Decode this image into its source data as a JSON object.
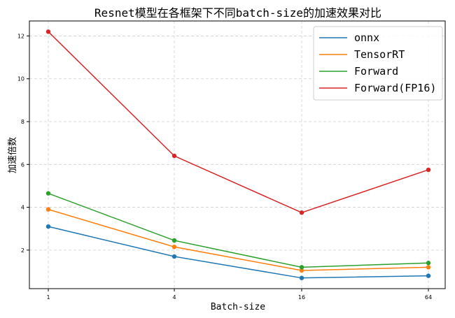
{
  "chart_data": {
    "type": "line",
    "title": "Resnet模型在各框架下不同batch-size的加速效果对比",
    "xlabel": "Batch-size",
    "ylabel": "加速倍数",
    "categories": [
      "1",
      "4",
      "16",
      "64"
    ],
    "yticks": [
      2,
      4,
      6,
      8,
      10,
      12
    ],
    "ylim": [
      0.2,
      12.7
    ],
    "grid": true,
    "legend_position": "top-right",
    "series": [
      {
        "name": "onnx",
        "color": "#1f77b4",
        "values": [
          3.1,
          1.7,
          0.7,
          0.8
        ]
      },
      {
        "name": "TensorRT",
        "color": "#ff7f0e",
        "values": [
          3.9,
          2.15,
          1.05,
          1.2
        ]
      },
      {
        "name": "Forward",
        "color": "#2ca02c",
        "values": [
          4.65,
          2.45,
          1.2,
          1.4
        ]
      },
      {
        "name": "Forward(FP16)",
        "color": "#d62728",
        "values": [
          12.2,
          6.4,
          3.75,
          5.75
        ]
      }
    ]
  }
}
